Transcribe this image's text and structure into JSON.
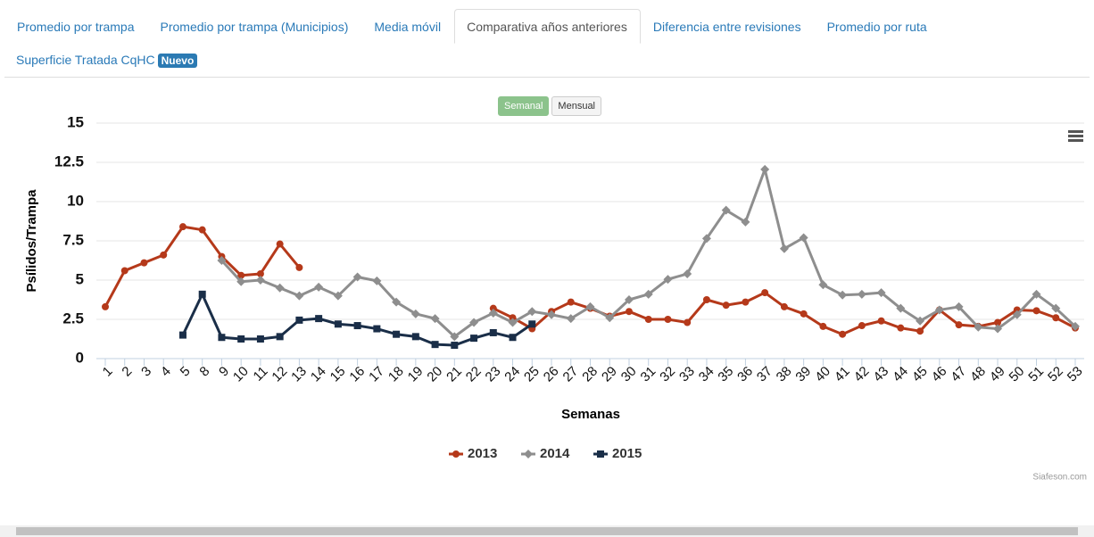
{
  "tabs": [
    "Promedio por trampa",
    "Promedio por trampa (Municipios)",
    "Media móvil",
    "Comparativa años anteriores",
    "Diferencia entre revisiones",
    "Promedio por ruta"
  ],
  "tab2": {
    "label": "Superficie Tratada CqHC",
    "badge": "Nuevo"
  },
  "active_tab": 3,
  "buttons": [
    "Semanal",
    "Mensual"
  ],
  "credit": "Siafeson.com",
  "chart_data": {
    "type": "line",
    "y_label": "Psílidos/Trampa",
    "x_label": "Semanas",
    "categories": [
      1,
      2,
      3,
      4,
      5,
      8,
      9,
      10,
      11,
      12,
      13,
      14,
      15,
      16,
      17,
      18,
      19,
      20,
      21,
      22,
      23,
      24,
      25,
      26,
      27,
      28,
      29,
      30,
      31,
      32,
      33,
      34,
      35,
      36,
      37,
      38,
      39,
      40,
      41,
      42,
      43,
      44,
      45,
      46,
      47,
      48,
      49,
      50,
      51,
      52,
      53
    ],
    "ylim": [
      0,
      15
    ],
    "yticks": [
      0,
      2.5,
      5,
      7.5,
      10,
      12.5,
      15
    ],
    "grid": true,
    "legend": "bottom",
    "series": [
      {
        "name": "2013",
        "color": "#b5391a",
        "marker": "circle",
        "values": [
          3.3,
          5.6,
          6.1,
          6.6,
          8.4,
          8.2,
          6.5,
          5.3,
          5.4,
          7.3,
          5.8,
          null,
          null,
          null,
          null,
          null,
          null,
          null,
          null,
          null,
          3.2,
          2.6,
          1.9,
          3.0,
          3.6,
          3.2,
          2.7,
          3.0,
          2.5,
          2.5,
          2.3,
          3.75,
          3.4,
          3.6,
          4.2,
          3.3,
          2.85,
          2.05,
          1.55,
          2.1,
          2.4,
          1.95,
          1.75,
          3.1,
          2.15,
          2.05,
          2.3,
          3.1,
          3.05,
          2.6,
          1.95
        ]
      },
      {
        "name": "2014",
        "color": "#8e8e8e",
        "marker": "diamond",
        "values": [
          null,
          null,
          null,
          null,
          null,
          null,
          6.25,
          4.9,
          5.0,
          4.5,
          4.0,
          4.55,
          4.0,
          5.2,
          4.95,
          3.6,
          2.85,
          2.55,
          1.4,
          2.3,
          2.9,
          2.3,
          3.0,
          2.8,
          2.55,
          3.3,
          2.6,
          3.75,
          4.1,
          5.05,
          5.4,
          7.65,
          9.45,
          8.7,
          12.05,
          7.0,
          7.7,
          4.7,
          4.05,
          4.1,
          4.2,
          3.2,
          2.4,
          3.1,
          3.3,
          2.0,
          1.9,
          2.8,
          4.1,
          3.2,
          2.05
        ]
      },
      {
        "name": "2015",
        "color": "#1a2e48",
        "marker": "square",
        "values": [
          null,
          null,
          null,
          null,
          1.5,
          4.1,
          1.35,
          1.25,
          1.25,
          1.4,
          2.45,
          2.55,
          2.2,
          2.1,
          1.9,
          1.55,
          1.4,
          0.9,
          0.85,
          1.3,
          1.65,
          1.35,
          2.2,
          null,
          null,
          null,
          null,
          null,
          null,
          null,
          null,
          null,
          null,
          null,
          null,
          null,
          null,
          null,
          null,
          null,
          null,
          null,
          null,
          null,
          null,
          null,
          null,
          null,
          null,
          null,
          null
        ]
      }
    ]
  }
}
